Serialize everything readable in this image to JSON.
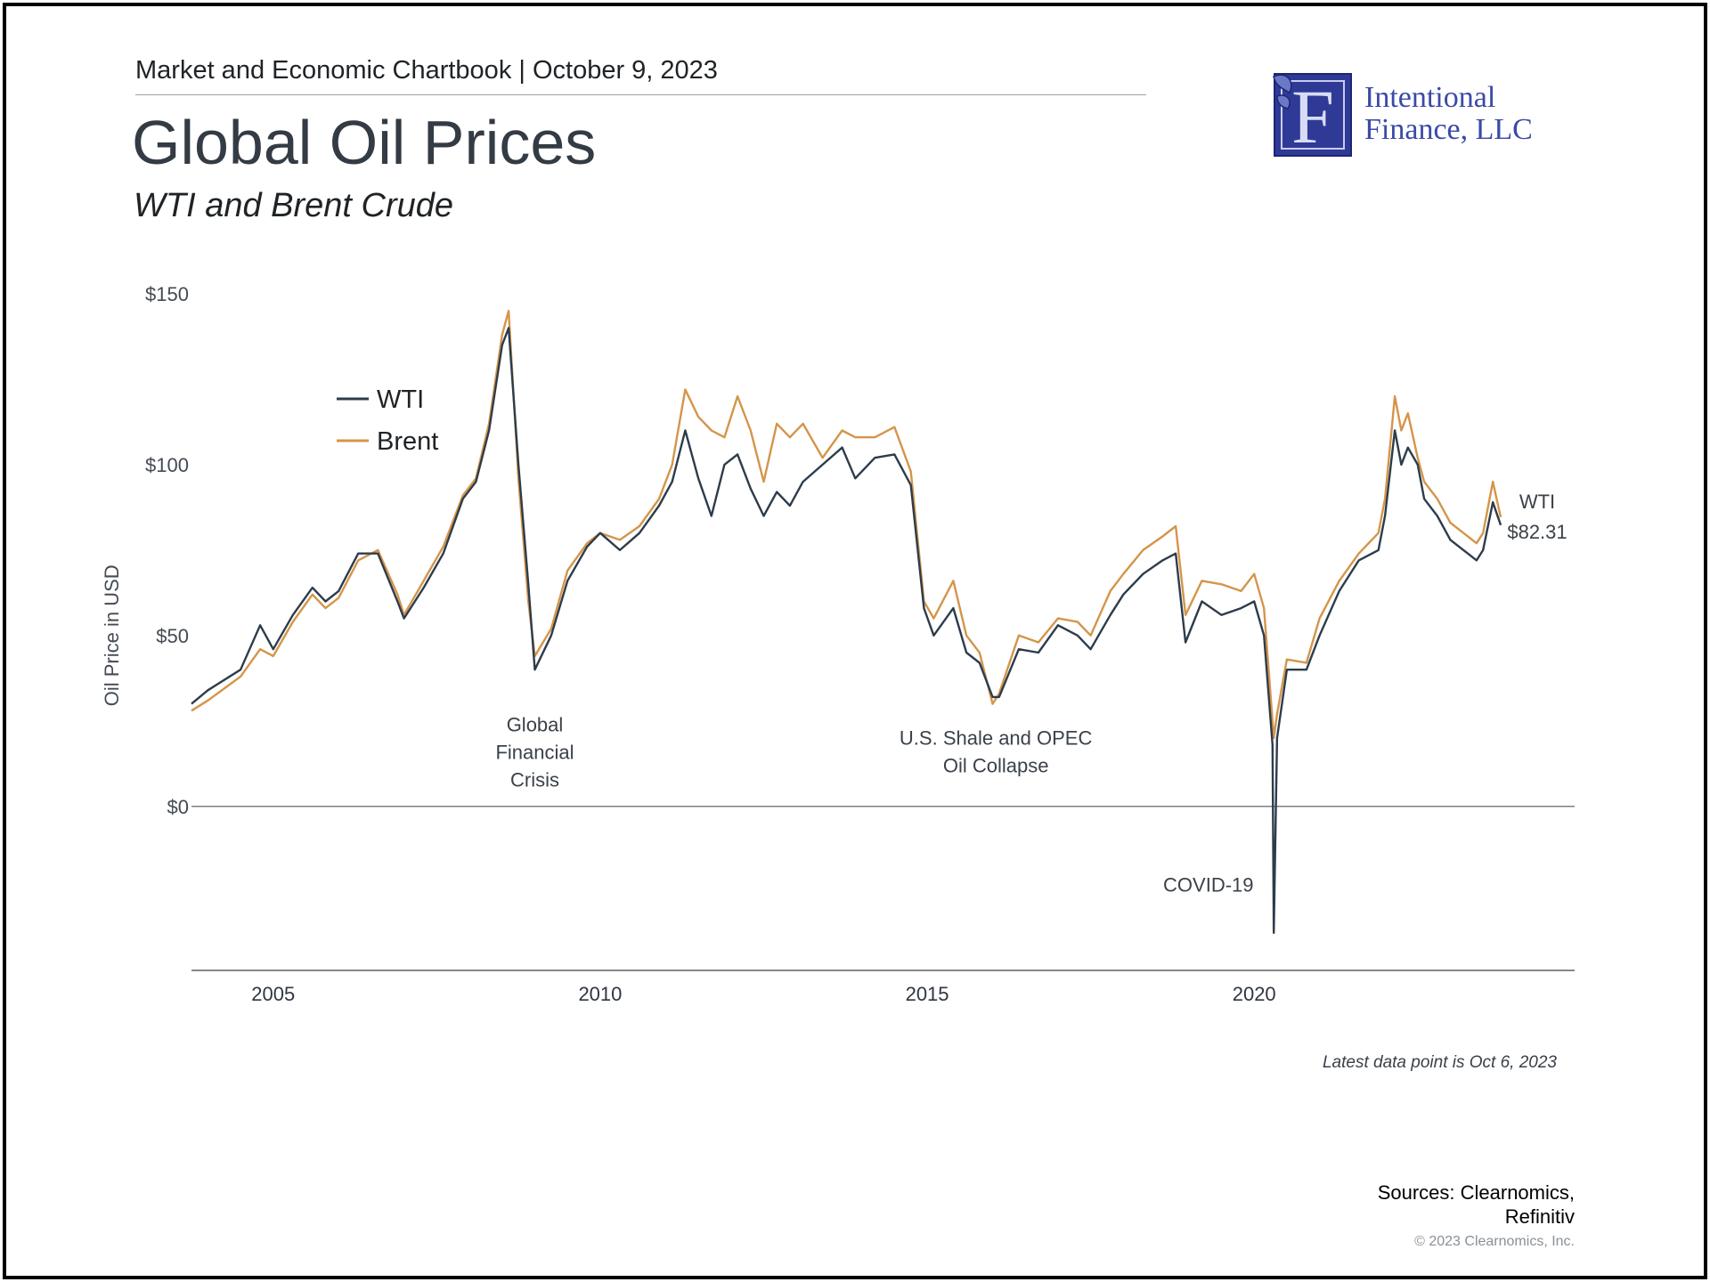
{
  "header": {
    "line": "Market and Economic Chartbook | October 9, 2023",
    "title": "Global Oil Prices",
    "subtitle": "WTI and Brent Crude"
  },
  "logo": {
    "letter": "F",
    "name_line1": "Intentional",
    "name_line2": "Finance, LLC"
  },
  "colors": {
    "wti": "#2d3c4b",
    "brent": "#d4954a",
    "zero_line": "#7a8088",
    "axis": "#5a6068"
  },
  "chart_data": {
    "type": "line",
    "title": "Global Oil Prices",
    "subtitle": "WTI and Brent Crude",
    "xlabel": "",
    "ylabel": "Oil Price in USD",
    "xlim": [
      2003.75,
      2024.9
    ],
    "ylim": [
      -48,
      150
    ],
    "x_ticks": [
      2005,
      2010,
      2015,
      2020
    ],
    "x_tick_labels": [
      "2005",
      "2010",
      "2015",
      "2020"
    ],
    "y_ticks": [
      0,
      50,
      100,
      150
    ],
    "y_tick_labels": [
      "$0",
      "$50",
      "$100",
      "$150"
    ],
    "grid": false,
    "legend": {
      "position": "top-left",
      "entries": [
        "WTI",
        "Brent"
      ]
    },
    "series": [
      {
        "name": "WTI",
        "x": [
          2003.75,
          2004.0,
          2004.5,
          2004.8,
          2005.0,
          2005.3,
          2005.6,
          2005.8,
          2006.0,
          2006.3,
          2006.6,
          2006.9,
          2007.0,
          2007.3,
          2007.6,
          2007.9,
          2008.1,
          2008.3,
          2008.5,
          2008.6,
          2008.75,
          2008.9,
          2009.0,
          2009.25,
          2009.5,
          2009.8,
          2010.0,
          2010.3,
          2010.6,
          2010.9,
          2011.1,
          2011.3,
          2011.5,
          2011.7,
          2011.9,
          2012.1,
          2012.3,
          2012.5,
          2012.7,
          2012.9,
          2013.1,
          2013.4,
          2013.7,
          2013.9,
          2014.2,
          2014.5,
          2014.75,
          2014.95,
          2015.1,
          2015.4,
          2015.6,
          2015.8,
          2016.0,
          2016.1,
          2016.4,
          2016.7,
          2017.0,
          2017.3,
          2017.5,
          2017.8,
          2018.0,
          2018.3,
          2018.6,
          2018.8,
          2018.95,
          2019.2,
          2019.5,
          2019.8,
          2020.0,
          2020.15,
          2020.28,
          2020.3,
          2020.35,
          2020.5,
          2020.8,
          2021.0,
          2021.3,
          2021.6,
          2021.9,
          2022.0,
          2022.15,
          2022.25,
          2022.35,
          2022.5,
          2022.6,
          2022.8,
          2023.0,
          2023.2,
          2023.4,
          2023.5,
          2023.65,
          2023.77
        ],
        "values": [
          30,
          34,
          40,
          53,
          46,
          56,
          64,
          60,
          63,
          74,
          74,
          60,
          55,
          64,
          74,
          90,
          95,
          110,
          135,
          140,
          100,
          65,
          40,
          50,
          66,
          76,
          80,
          75,
          80,
          88,
          95,
          110,
          96,
          85,
          100,
          103,
          93,
          85,
          92,
          88,
          95,
          100,
          105,
          96,
          102,
          103,
          94,
          58,
          50,
          58,
          45,
          42,
          32,
          32,
          46,
          45,
          53,
          50,
          46,
          56,
          62,
          68,
          72,
          74,
          48,
          60,
          56,
          58,
          60,
          50,
          18,
          -37,
          20,
          40,
          40,
          50,
          63,
          72,
          75,
          85,
          110,
          100,
          105,
          100,
          90,
          85,
          78,
          75,
          72,
          75,
          89,
          82.31
        ]
      },
      {
        "name": "Brent",
        "x": [
          2003.75,
          2004.0,
          2004.5,
          2004.8,
          2005.0,
          2005.3,
          2005.6,
          2005.8,
          2006.0,
          2006.3,
          2006.6,
          2006.9,
          2007.0,
          2007.3,
          2007.6,
          2007.9,
          2008.1,
          2008.3,
          2008.5,
          2008.6,
          2008.75,
          2008.9,
          2009.0,
          2009.25,
          2009.5,
          2009.8,
          2010.0,
          2010.3,
          2010.6,
          2010.9,
          2011.1,
          2011.3,
          2011.5,
          2011.7,
          2011.9,
          2012.1,
          2012.3,
          2012.5,
          2012.7,
          2012.9,
          2013.1,
          2013.4,
          2013.7,
          2013.9,
          2014.2,
          2014.5,
          2014.75,
          2014.95,
          2015.1,
          2015.4,
          2015.6,
          2015.8,
          2016.0,
          2016.1,
          2016.4,
          2016.7,
          2017.0,
          2017.3,
          2017.5,
          2017.8,
          2018.0,
          2018.3,
          2018.6,
          2018.8,
          2018.95,
          2019.2,
          2019.5,
          2019.8,
          2020.0,
          2020.15,
          2020.28,
          2020.3,
          2020.35,
          2020.5,
          2020.8,
          2021.0,
          2021.3,
          2021.6,
          2021.9,
          2022.0,
          2022.15,
          2022.25,
          2022.35,
          2022.5,
          2022.6,
          2022.8,
          2023.0,
          2023.2,
          2023.4,
          2023.5,
          2023.65,
          2023.77
        ],
        "values": [
          28,
          31,
          38,
          46,
          44,
          54,
          62,
          58,
          61,
          72,
          75,
          62,
          56,
          66,
          76,
          91,
          96,
          112,
          138,
          145,
          96,
          60,
          44,
          52,
          69,
          77,
          80,
          78,
          82,
          90,
          100,
          122,
          114,
          110,
          108,
          120,
          110,
          95,
          112,
          108,
          112,
          102,
          110,
          108,
          108,
          111,
          98,
          60,
          55,
          66,
          50,
          45,
          30,
          33,
          50,
          48,
          55,
          54,
          50,
          63,
          68,
          75,
          79,
          82,
          56,
          66,
          65,
          63,
          68,
          58,
          25,
          20,
          27,
          43,
          42,
          55,
          66,
          74,
          80,
          90,
          120,
          110,
          115,
          102,
          95,
          90,
          83,
          80,
          77,
          80,
          95,
          84.6
        ]
      }
    ],
    "annotations": [
      {
        "lines": [
          "Global",
          "Financial",
          "Crisis"
        ],
        "x": 2009.0,
        "y": 22
      },
      {
        "lines": [
          "U.S. Shale and OPEC",
          "Oil Collapse"
        ],
        "x": 2016.05,
        "y": 18
      },
      {
        "lines": [
          "COVID-19"
        ],
        "x": 2019.3,
        "y": -25
      }
    ],
    "end_label": {
      "series": "WTI",
      "line1": "WTI",
      "line2": "$82.31"
    }
  },
  "footer": {
    "latest_note": "Latest data point is Oct 6, 2023",
    "sources_line1": "Sources: Clearnomics,",
    "sources_line2": "Refinitiv",
    "copyright": "© 2023 Clearnomics, Inc."
  }
}
